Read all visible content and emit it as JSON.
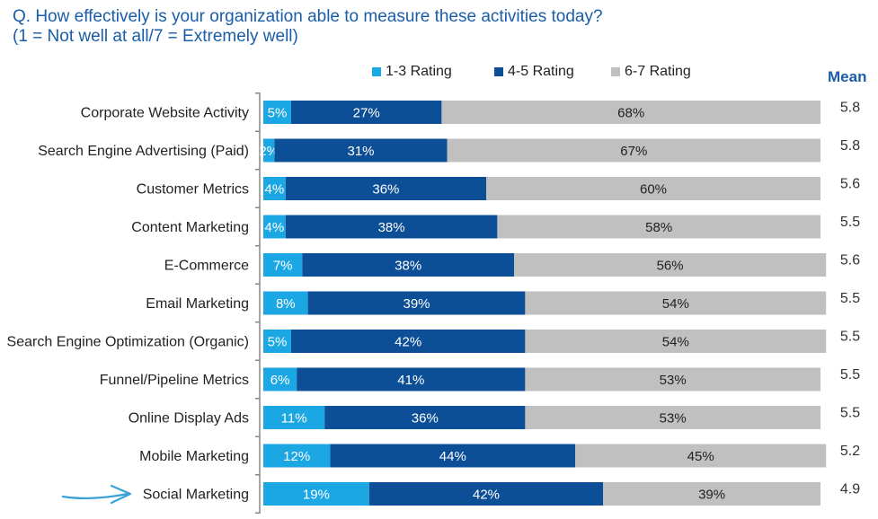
{
  "title_line1": "Q. How effectively is your organization able to measure these activities today?",
  "title_line2": "(1  = Not well at all/7 = Extremely well)",
  "mean_header": "Mean",
  "colors": {
    "low": "#1ba7e3",
    "mid": "#0d4f96",
    "high": "#c0c0c0",
    "title": "#1a5da8",
    "arrow": "#3aa0d8"
  },
  "chart_data": {
    "type": "bar",
    "orientation": "horizontal",
    "stacked": true,
    "categories": [
      "Corporate Website Activity",
      "Search Engine Advertising (Paid)",
      "Customer Metrics",
      "Content Marketing",
      "E-Commerce",
      "Email Marketing",
      "Search Engine Optimization (Organic)",
      "Funnel/Pipeline Metrics",
      "Online Display Ads",
      "Mobile Marketing",
      "Social Marketing"
    ],
    "series": [
      {
        "name": "1-3 Rating",
        "values": [
          5,
          2,
          4,
          4,
          7,
          8,
          5,
          6,
          11,
          12,
          19
        ]
      },
      {
        "name": "4-5 Rating",
        "values": [
          27,
          31,
          36,
          38,
          38,
          39,
          42,
          41,
          36,
          44,
          42
        ]
      },
      {
        "name": "6-7 Rating",
        "values": [
          68,
          67,
          60,
          58,
          56,
          54,
          54,
          53,
          53,
          45,
          39
        ]
      }
    ],
    "means": [
      "5.8",
      "5.8",
      "5.6",
      "5.5",
      "5.6",
      "5.5",
      "5.5",
      "5.5",
      "5.5",
      "5.2",
      "4.9"
    ],
    "unit": "%",
    "xlim": [
      0,
      100
    ],
    "legend_position": "top"
  }
}
